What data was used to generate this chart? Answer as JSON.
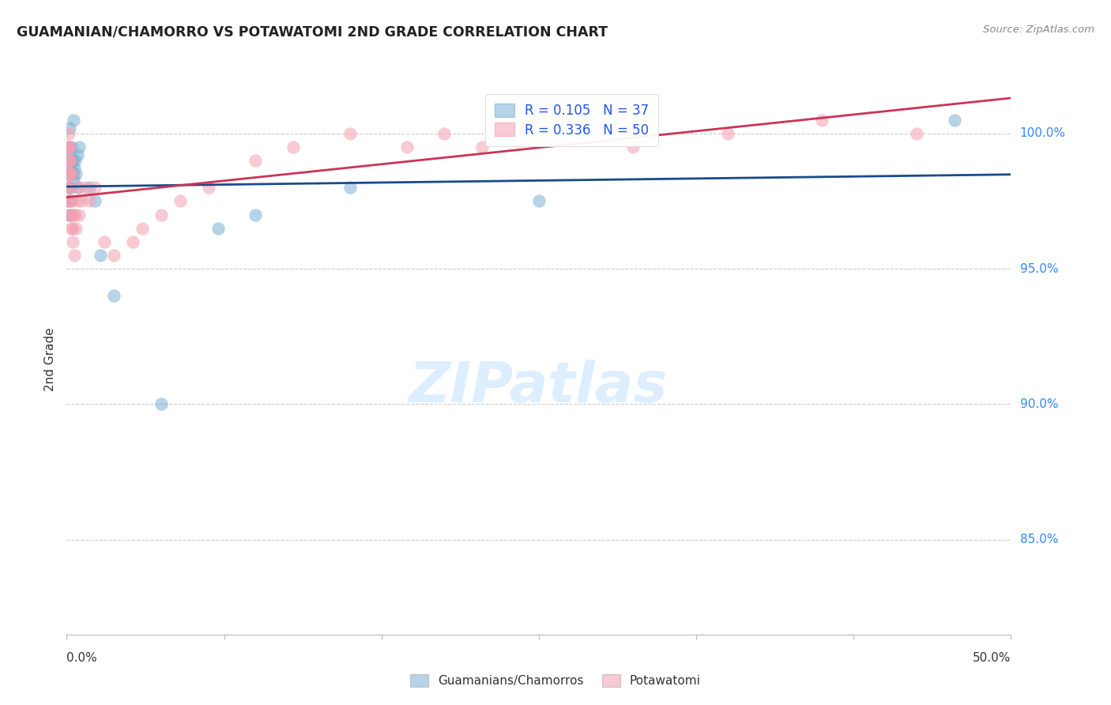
{
  "title": "GUAMANIAN/CHAMORRO VS POTAWATOMI 2ND GRADE CORRELATION CHART",
  "source": "Source: ZipAtlas.com",
  "ylabel": "2nd Grade",
  "xlim": [
    0.0,
    50.0
  ],
  "ylim": [
    81.5,
    101.8
  ],
  "ytick_values": [
    85.0,
    90.0,
    95.0,
    100.0
  ],
  "ytick_labels": [
    "85.0%",
    "90.0%",
    "95.0%",
    "100.0%"
  ],
  "xtick_positions": [
    0.0,
    8.333,
    16.667,
    25.0,
    33.333,
    41.667,
    50.0
  ],
  "R_blue": "0.105",
  "N_blue": "37",
  "R_pink": "0.336",
  "N_pink": "50",
  "legend1_label": "Guamanians/Chamorros",
  "legend2_label": "Potawatomi",
  "blue_color": "#7BAFD4",
  "pink_color": "#F4A0B0",
  "line_blue": "#1A4A8A",
  "line_pink": "#CC3355",
  "watermark_color": "#DDEEFF",
  "blue_x": [
    0.05,
    0.08,
    0.1,
    0.12,
    0.13,
    0.14,
    0.15,
    0.16,
    0.17,
    0.18,
    0.19,
    0.2,
    0.21,
    0.22,
    0.23,
    0.25,
    0.27,
    0.3,
    0.32,
    0.35,
    0.38,
    0.4,
    0.45,
    0.5,
    0.55,
    0.6,
    0.65,
    1.2,
    1.5,
    1.8,
    2.5,
    5.0,
    8.0,
    10.0,
    15.0,
    25.0,
    47.0
  ],
  "blue_y": [
    97.5,
    98.5,
    97.0,
    99.5,
    98.0,
    99.0,
    100.2,
    98.5,
    99.0,
    97.5,
    98.8,
    97.0,
    99.2,
    98.5,
    99.5,
    98.0,
    99.0,
    98.5,
    99.0,
    98.3,
    100.5,
    98.7,
    99.0,
    98.5,
    99.2,
    98.0,
    99.5,
    98.0,
    97.5,
    95.5,
    94.0,
    90.0,
    96.5,
    97.0,
    98.0,
    97.5,
    100.5
  ],
  "pink_x": [
    0.05,
    0.07,
    0.08,
    0.09,
    0.1,
    0.11,
    0.12,
    0.13,
    0.14,
    0.15,
    0.16,
    0.17,
    0.18,
    0.19,
    0.2,
    0.22,
    0.23,
    0.25,
    0.27,
    0.3,
    0.32,
    0.35,
    0.4,
    0.45,
    0.5,
    0.55,
    0.6,
    0.65,
    0.8,
    1.0,
    1.2,
    1.5,
    2.0,
    2.5,
    3.5,
    4.0,
    5.0,
    6.0,
    7.5,
    10.0,
    12.0,
    15.0,
    18.0,
    20.0,
    22.0,
    25.0,
    30.0,
    35.0,
    40.0,
    45.0
  ],
  "pink_y": [
    99.5,
    98.5,
    97.5,
    99.0,
    98.5,
    99.5,
    100.0,
    98.0,
    99.5,
    97.5,
    98.0,
    99.0,
    98.5,
    97.0,
    99.0,
    98.5,
    97.0,
    96.5,
    97.5,
    96.5,
    96.0,
    97.0,
    95.5,
    97.0,
    96.5,
    97.5,
    98.0,
    97.0,
    97.5,
    98.0,
    97.5,
    98.0,
    96.0,
    95.5,
    96.0,
    96.5,
    97.0,
    97.5,
    98.0,
    99.0,
    99.5,
    100.0,
    99.5,
    100.0,
    99.5,
    100.5,
    99.5,
    100.0,
    100.5,
    100.0
  ]
}
